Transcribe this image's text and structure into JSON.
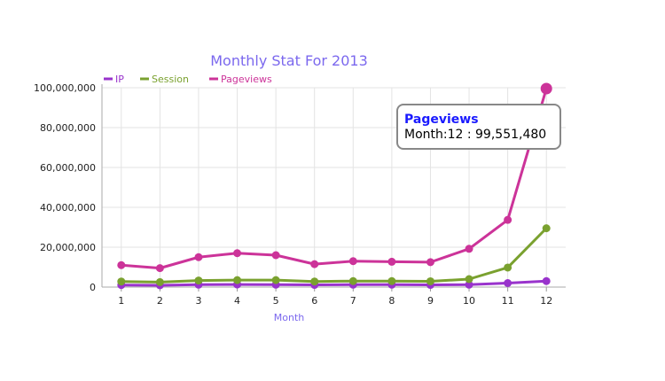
{
  "chart_data": {
    "type": "line",
    "title": "Monthly Stat For 2013",
    "xlabel": "Month",
    "ylabel": "",
    "categories": [
      "1",
      "2",
      "3",
      "4",
      "5",
      "6",
      "7",
      "8",
      "9",
      "10",
      "11",
      "12"
    ],
    "ylim": [
      0,
      100000000
    ],
    "yticks": [
      0,
      20000000,
      40000000,
      60000000,
      80000000,
      100000000
    ],
    "ytick_labels": [
      "0",
      "20,000,000",
      "40,000,000",
      "60,000,000",
      "80,000,000",
      "100,000,000"
    ],
    "grid": true,
    "legend_position": "top-left",
    "series": [
      {
        "name": "IP",
        "color": "#9933cc",
        "values": [
          1000000,
          900000,
          1200000,
          1300000,
          1200000,
          1100000,
          1200000,
          1200000,
          1100000,
          1200000,
          2000000,
          3000000
        ]
      },
      {
        "name": "Session",
        "color": "#7aa12f",
        "values": [
          2800000,
          2500000,
          3300000,
          3500000,
          3500000,
          2800000,
          3000000,
          3000000,
          2900000,
          4000000,
          9800000,
          29500000
        ]
      },
      {
        "name": "Pageviews",
        "color": "#cc3399",
        "values": [
          11000000,
          9500000,
          15000000,
          17000000,
          16000000,
          11500000,
          13000000,
          12700000,
          12500000,
          19200000,
          33700000,
          99551480
        ]
      }
    ],
    "tooltip": {
      "series": "Pageviews",
      "text": "Month:12 : 99,551,480",
      "index": 11
    }
  }
}
